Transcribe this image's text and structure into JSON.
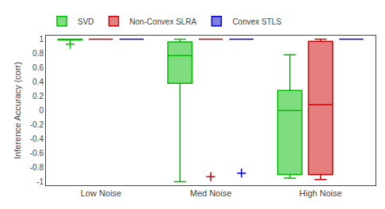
{
  "chart_data": {
    "type": "box",
    "ylabel": "Inference Accuracy (corr)",
    "categories": [
      "Low Noise",
      "Med Noise",
      "High Noise"
    ],
    "series": [
      {
        "name": "SVD",
        "color": "#00bb00",
        "values": [
          {
            "q1": 0.99,
            "median": 0.997,
            "q3": 1.0,
            "whislo": 0.99,
            "whishi": 1.0,
            "fliers": [
              0.93
            ]
          },
          {
            "q1": 0.38,
            "median": 0.77,
            "q3": 0.96,
            "whislo": -1.0,
            "whishi": 1.0,
            "fliers": []
          },
          {
            "q1": -0.9,
            "median": 0.0,
            "q3": 0.28,
            "whislo": -0.95,
            "whishi": 0.78,
            "fliers": []
          }
        ]
      },
      {
        "name": "Non-Convex SLRA",
        "color": "#cc0000",
        "values": [
          {
            "q1": 1.0,
            "median": 1.0,
            "q3": 1.0,
            "whislo": 1.0,
            "whishi": 1.0,
            "fliers": []
          },
          {
            "q1": 1.0,
            "median": 1.0,
            "q3": 1.0,
            "whislo": 1.0,
            "whishi": 1.0,
            "fliers": [
              -0.93
            ]
          },
          {
            "q1": -0.9,
            "median": 0.08,
            "q3": 0.97,
            "whislo": -0.97,
            "whishi": 1.0,
            "fliers": []
          }
        ]
      },
      {
        "name": "Convex STLS",
        "color": "#0000cc",
        "values": [
          {
            "q1": 1.0,
            "median": 1.0,
            "q3": 1.0,
            "whislo": 1.0,
            "whishi": 1.0,
            "fliers": []
          },
          {
            "q1": 1.0,
            "median": 1.0,
            "q3": 1.0,
            "whislo": 1.0,
            "whishi": 1.0,
            "fliers": [
              -0.88
            ]
          },
          {
            "q1": 1.0,
            "median": 1.0,
            "q3": 1.0,
            "whislo": 1.0,
            "whishi": 1.0,
            "fliers": []
          }
        ]
      }
    ],
    "ylim": [
      -1.05,
      1.05
    ],
    "yticks": [
      -1,
      -0.8,
      -0.6,
      -0.4,
      -0.2,
      0,
      0.2,
      0.4,
      0.6,
      0.8,
      1
    ],
    "grid": false
  }
}
